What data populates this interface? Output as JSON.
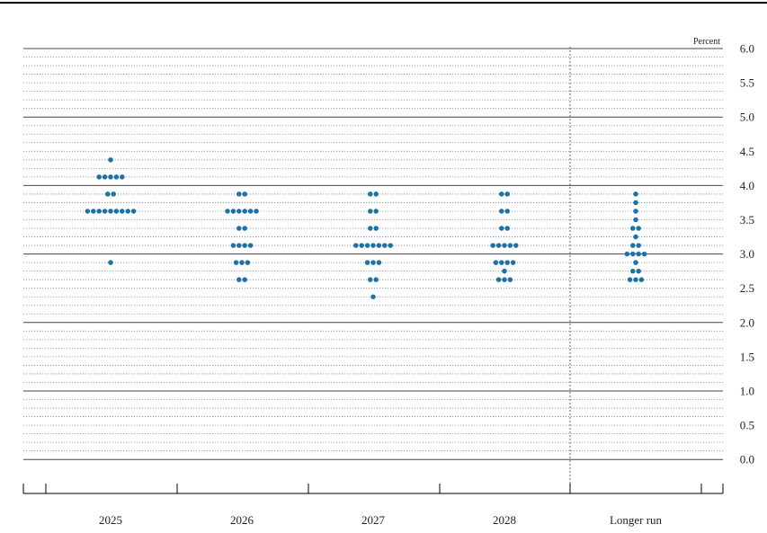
{
  "chart_data": {
    "type": "scatter",
    "style": "dot-plot",
    "unit_label": "Percent",
    "ylim": [
      -0.5,
      6.0
    ],
    "y_ticks": [
      "6.0",
      "5.5",
      "5.0",
      "4.5",
      "4.0",
      "3.5",
      "3.0",
      "2.5",
      "2.0",
      "1.5",
      "1.0",
      "0.5",
      "0.0"
    ],
    "categories": [
      "2025",
      "2026",
      "2027",
      "2028",
      "Longer run"
    ],
    "grid": "dotted every 0.125, solid every 1.0",
    "dot_color": "#1a72a8",
    "columns": [
      {
        "category": "2025",
        "points": [
          {
            "y": 4.375,
            "count": 1
          },
          {
            "y": 4.125,
            "count": 5
          },
          {
            "y": 3.875,
            "count": 2
          },
          {
            "y": 3.625,
            "count": 9
          },
          {
            "y": 2.875,
            "count": 1
          }
        ]
      },
      {
        "category": "2026",
        "points": [
          {
            "y": 3.875,
            "count": 2
          },
          {
            "y": 3.625,
            "count": 6
          },
          {
            "y": 3.375,
            "count": 2
          },
          {
            "y": 3.125,
            "count": 4
          },
          {
            "y": 2.875,
            "count": 3
          },
          {
            "y": 2.625,
            "count": 2
          }
        ]
      },
      {
        "category": "2027",
        "points": [
          {
            "y": 3.875,
            "count": 2
          },
          {
            "y": 3.625,
            "count": 2
          },
          {
            "y": 3.375,
            "count": 2
          },
          {
            "y": 3.125,
            "count": 7
          },
          {
            "y": 2.875,
            "count": 3
          },
          {
            "y": 2.625,
            "count": 2
          },
          {
            "y": 2.375,
            "count": 1
          }
        ]
      },
      {
        "category": "2028",
        "points": [
          {
            "y": 3.875,
            "count": 2
          },
          {
            "y": 3.625,
            "count": 2
          },
          {
            "y": 3.375,
            "count": 2
          },
          {
            "y": 3.125,
            "count": 5
          },
          {
            "y": 2.875,
            "count": 4
          },
          {
            "y": 2.75,
            "count": 1
          },
          {
            "y": 2.625,
            "count": 3
          }
        ]
      },
      {
        "category": "Longer run",
        "points": [
          {
            "y": 3.875,
            "count": 1
          },
          {
            "y": 3.75,
            "count": 1
          },
          {
            "y": 3.625,
            "count": 1
          },
          {
            "y": 3.5,
            "count": 1
          },
          {
            "y": 3.375,
            "count": 2
          },
          {
            "y": 3.25,
            "count": 1
          },
          {
            "y": 3.125,
            "count": 2
          },
          {
            "y": 3.0,
            "count": 4
          },
          {
            "y": 2.875,
            "count": 1
          },
          {
            "y": 2.75,
            "count": 2
          },
          {
            "y": 2.625,
            "count": 3
          }
        ]
      }
    ]
  }
}
